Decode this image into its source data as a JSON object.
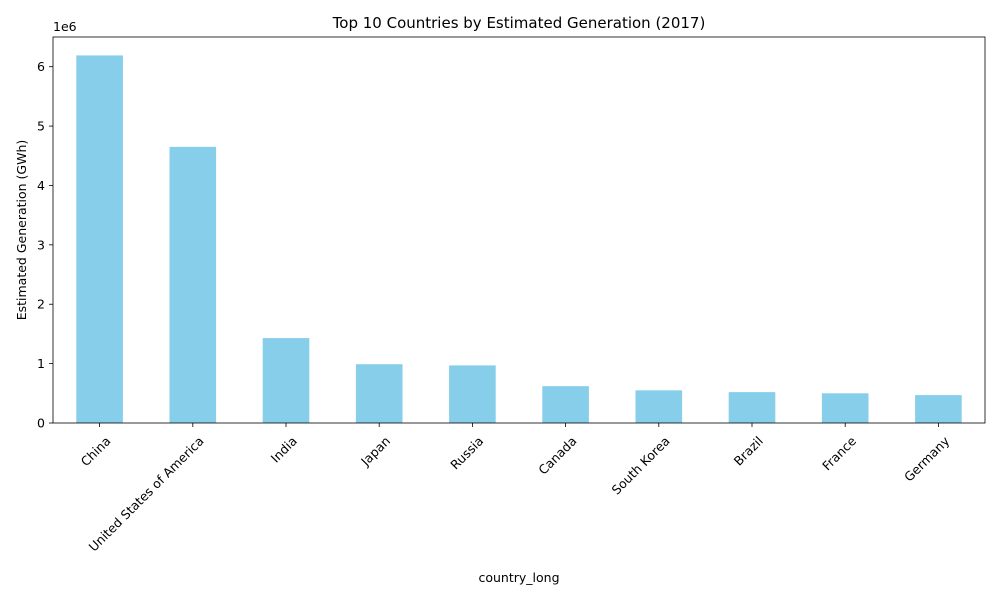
{
  "chart_data": {
    "type": "bar",
    "title": "Top 10 Countries by Estimated Generation (2017)",
    "xlabel": "country_long",
    "ylabel": "Estimated Generation (GWh)",
    "offset_text": "1e6",
    "categories": [
      "China",
      "United States of America",
      "India",
      "Japan",
      "Russia",
      "Canada",
      "South Korea",
      "Brazil",
      "France",
      "Germany"
    ],
    "values": [
      6190000,
      4650000,
      1430000,
      990000,
      970000,
      620000,
      550000,
      520000,
      500000,
      470000
    ],
    "ylim": [
      0,
      6500000
    ],
    "yticks": [
      0,
      1000000,
      2000000,
      3000000,
      4000000,
      5000000,
      6000000
    ],
    "ytick_labels": [
      "0",
      "1",
      "2",
      "3",
      "4",
      "5",
      "6"
    ],
    "bar_color": "#87ceeb",
    "grid": false,
    "legend": "none"
  }
}
